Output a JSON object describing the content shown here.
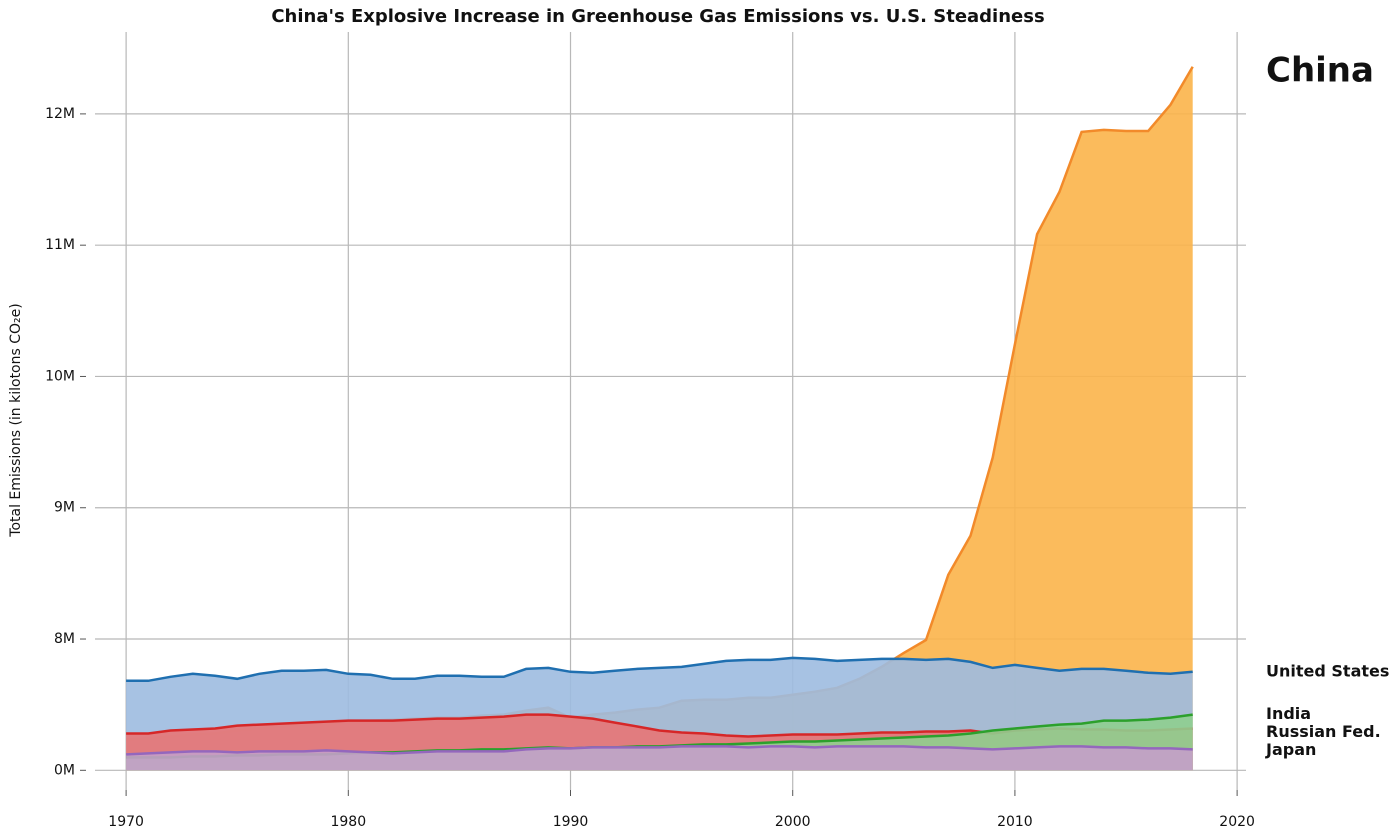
{
  "chart_data": {
    "type": "area",
    "title": "China's Explosive Increase in Greenhouse Gas Emissions vs. U.S. Steadiness",
    "y_label": "Total Emissions (in kilotons CO₂e)",
    "x": [
      1970,
      1971,
      1972,
      1973,
      1974,
      1975,
      1976,
      1977,
      1978,
      1979,
      1980,
      1981,
      1982,
      1983,
      1984,
      1985,
      1986,
      1987,
      1988,
      1989,
      1990,
      1991,
      1992,
      1993,
      1994,
      1995,
      1996,
      1997,
      1998,
      1999,
      2000,
      2001,
      2002,
      2003,
      2004,
      2005,
      2006,
      2007,
      2008,
      2009,
      2010,
      2011,
      2012,
      2013,
      2014,
      2015,
      2016,
      2017,
      2018
    ],
    "series": [
      {
        "name": "China",
        "color": "#f28a2a",
        "fill": "#fbb44a",
        "values": [
          1879000,
          1939000,
          2061000,
          2182000,
          2242000,
          2424000,
          2545000,
          2667000,
          2788000,
          2909000,
          2970000,
          3030000,
          3091000,
          3152000,
          3212000,
          3212000,
          3333000,
          3394000,
          3636000,
          3818000,
          3212000,
          3394000,
          3515000,
          3697000,
          3818000,
          4242000,
          4303000,
          4303000,
          4424000,
          4424000,
          4606000,
          4788000,
          5030000,
          5576000,
          6303000,
          7152000,
          7940000,
          8489000,
          8786000,
          9382000,
          10244000,
          11084000,
          11405000,
          11863000,
          11878000,
          11870000,
          11870000,
          12069000,
          12359000
        ]
      },
      {
        "name": "United States",
        "color": "#1f6fb0",
        "fill": "#9dbbe0",
        "values": [
          5455000,
          5455000,
          5697000,
          5879000,
          5758000,
          5576000,
          5879000,
          6061000,
          6061000,
          6121000,
          5879000,
          5818000,
          5576000,
          5576000,
          5758000,
          5758000,
          5697000,
          5697000,
          6182000,
          6242000,
          6000000,
          5939000,
          6061000,
          6182000,
          6242000,
          6303000,
          6485000,
          6667000,
          6727000,
          6727000,
          6848000,
          6788000,
          6667000,
          6727000,
          6788000,
          6788000,
          6727000,
          6788000,
          6606000,
          6242000,
          6424000,
          6242000,
          6061000,
          6182000,
          6182000,
          6061000,
          5939000,
          5879000,
          6000000
        ]
      },
      {
        "name": "Russian Fed.",
        "color": "#d62728",
        "fill": "#e87575",
        "values": [
          2242000,
          2242000,
          2424000,
          2485000,
          2545000,
          2727000,
          2788000,
          2848000,
          2909000,
          2970000,
          3030000,
          3030000,
          3030000,
          3091000,
          3152000,
          3152000,
          3212000,
          3273000,
          3394000,
          3394000,
          3273000,
          3152000,
          2909000,
          2667000,
          2424000,
          2303000,
          2242000,
          2121000,
          2061000,
          2121000,
          2182000,
          2182000,
          2182000,
          2242000,
          2303000,
          2303000,
          2364000,
          2364000,
          2424000,
          2242000,
          2424000,
          2485000,
          2545000,
          2485000,
          2485000,
          2424000,
          2424000,
          2485000,
          2545000
        ]
      },
      {
        "name": "India",
        "color": "#2ca02c",
        "fill": "#8fcf8f",
        "values": [
          788000,
          788000,
          788000,
          848000,
          848000,
          909000,
          909000,
          970000,
          970000,
          970000,
          1030000,
          1091000,
          1091000,
          1152000,
          1212000,
          1212000,
          1273000,
          1273000,
          1333000,
          1394000,
          1333000,
          1394000,
          1394000,
          1455000,
          1455000,
          1515000,
          1576000,
          1576000,
          1636000,
          1697000,
          1758000,
          1758000,
          1818000,
          1879000,
          1939000,
          2000000,
          2061000,
          2121000,
          2242000,
          2424000,
          2545000,
          2667000,
          2788000,
          2848000,
          3030000,
          3030000,
          3091000,
          3212000,
          3394000
        ]
      },
      {
        "name": "Japan",
        "color": "#9467bd",
        "fill": "#c49ec9",
        "values": [
          970000,
          1030000,
          1091000,
          1152000,
          1152000,
          1091000,
          1152000,
          1152000,
          1152000,
          1212000,
          1152000,
          1091000,
          1030000,
          1091000,
          1152000,
          1152000,
          1152000,
          1152000,
          1273000,
          1333000,
          1333000,
          1394000,
          1394000,
          1394000,
          1394000,
          1455000,
          1455000,
          1455000,
          1394000,
          1455000,
          1455000,
          1394000,
          1455000,
          1455000,
          1455000,
          1455000,
          1394000,
          1394000,
          1333000,
          1273000,
          1333000,
          1394000,
          1455000,
          1455000,
          1394000,
          1394000,
          1333000,
          1333000,
          1273000
        ]
      }
    ],
    "xlim": [
      1968.6,
      2020.4
    ],
    "xticks": [
      1970,
      1980,
      1990,
      2000,
      2010,
      2020
    ],
    "ylim": [
      -1200000,
      12700000
    ],
    "yticks": [
      {
        "value": 0,
        "label": "0M"
      },
      {
        "value": 8000000,
        "label": "8M"
      },
      {
        "value": 9000000,
        "label": "9M"
      },
      {
        "value": 10000000,
        "label": "10M"
      },
      {
        "value": 11000000,
        "label": "11M"
      },
      {
        "value": 12000000,
        "label": "12M"
      }
    ],
    "grid": true,
    "legend": "right"
  }
}
